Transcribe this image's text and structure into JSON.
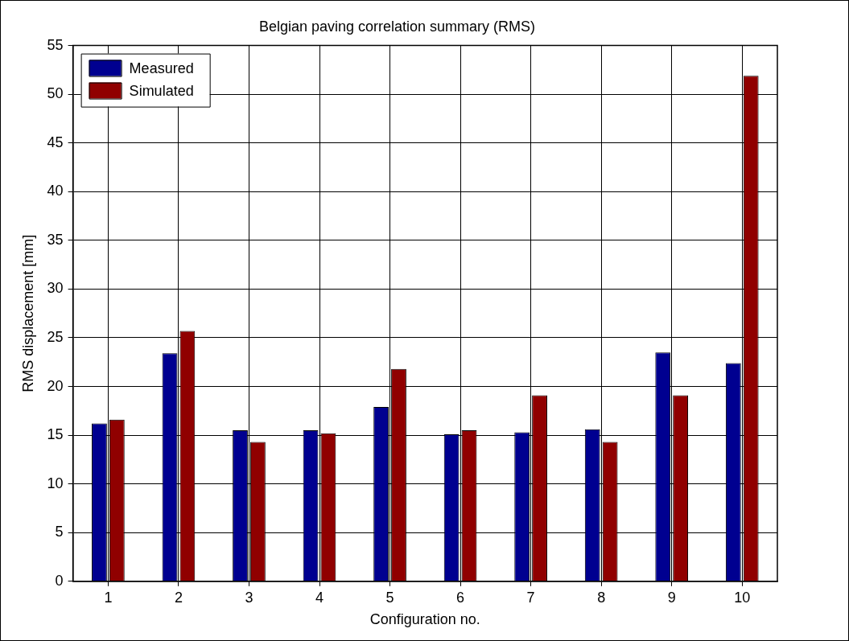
{
  "chart_data": {
    "type": "bar",
    "title": "Belgian paving correlation summary (RMS)",
    "xlabel": "Configuration no.",
    "ylabel": "RMS displacement [mm]",
    "categories": [
      "1",
      "2",
      "3",
      "4",
      "5",
      "6",
      "7",
      "8",
      "9",
      "10"
    ],
    "series": [
      {
        "name": "Measured",
        "color": "#000090",
        "values": [
          16.2,
          23.4,
          15.5,
          15.5,
          17.9,
          15.1,
          15.3,
          15.6,
          23.5,
          22.4
        ]
      },
      {
        "name": "Simulated",
        "color": "#900000",
        "values": [
          16.6,
          25.7,
          14.3,
          15.2,
          21.8,
          15.5,
          19.1,
          14.3,
          19.1,
          51.9
        ]
      }
    ],
    "ylim": [
      0,
      55
    ],
    "yticks": [
      0,
      5,
      10,
      15,
      20,
      25,
      30,
      35,
      40,
      45,
      50,
      55
    ],
    "grid": true,
    "legend": "top left"
  }
}
